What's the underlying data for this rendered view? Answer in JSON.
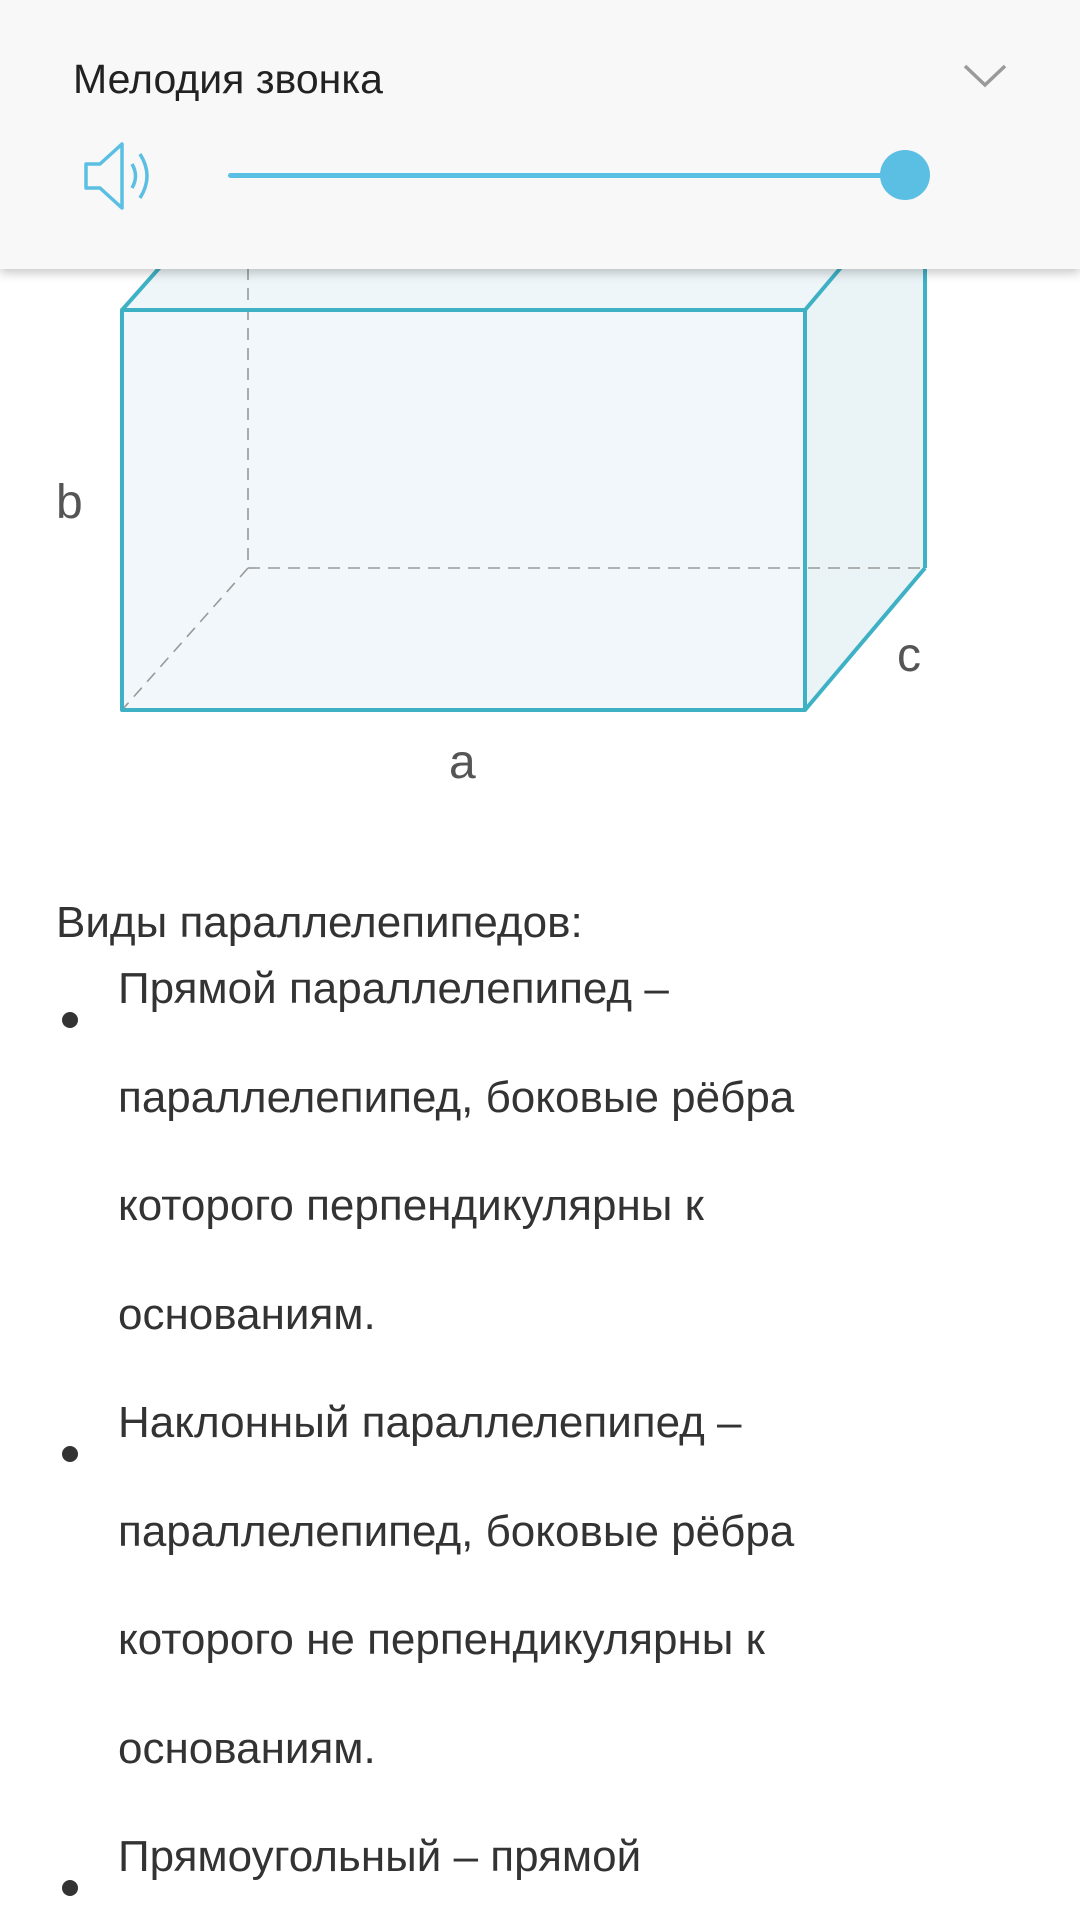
{
  "panel": {
    "title": "Мелодия звонка",
    "expand_icon": "chevron-down-icon",
    "volume_icon": "speaker-volume-icon",
    "volume_level_percent": 100,
    "accent_color": "#5bbfe3"
  },
  "figure": {
    "edge_color": "#3fb1c5",
    "face_color": "#eef6f9",
    "labels": {
      "a": "a",
      "b": "b",
      "c": "c"
    }
  },
  "content": {
    "intro": "Виды параллелепипедов:",
    "items": [
      {
        "lines": [
          "Прямой параллелепипед –",
          "параллелепипед, боковые рёбра",
          "которого перпендикулярны к",
          "основаниям."
        ]
      },
      {
        "lines": [
          "Наклонный параллелепипед –",
          "параллелепипед, боковые рёбра",
          "которого не перпендикулярны к",
          "основаниям."
        ]
      },
      {
        "lines": [
          "Прямоугольный – прямой"
        ]
      }
    ]
  }
}
